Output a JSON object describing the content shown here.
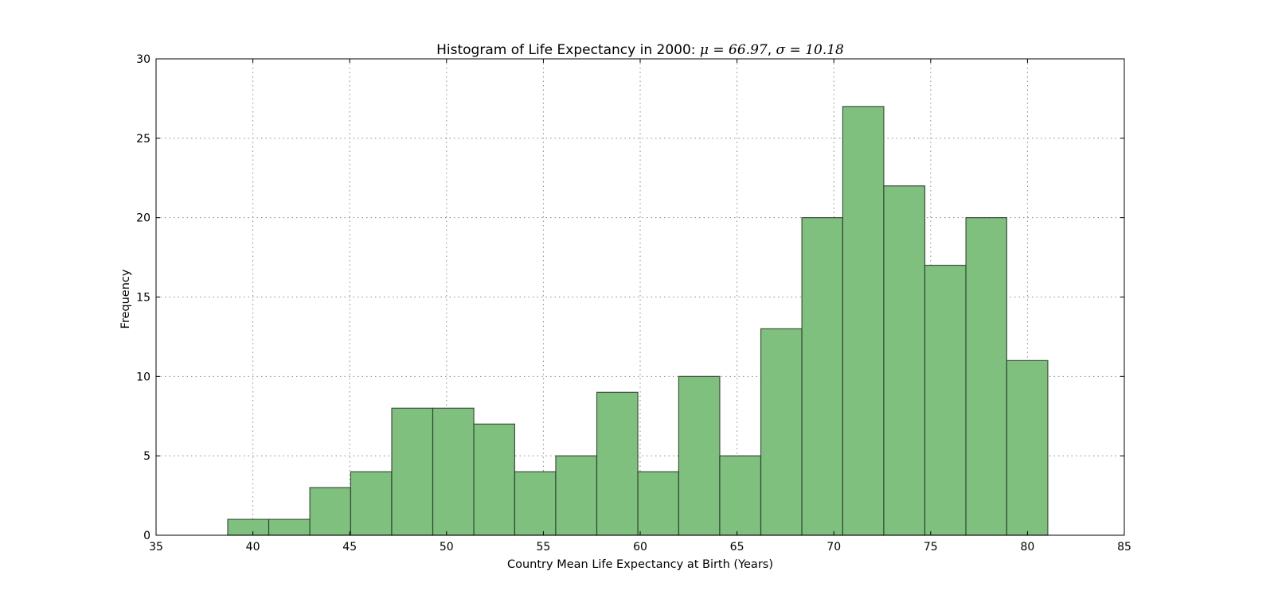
{
  "chart_data": {
    "type": "bar",
    "subtype": "histogram",
    "title": "Histogram of Life Expectancy in 2000: μ = 66.97, σ = 10.18",
    "title_parts": {
      "prefix": "Histogram of Life Expectancy in 2000: ",
      "mu_label": "μ",
      "mu_value": "66.97",
      "sigma_label": "σ",
      "sigma_value": "10.18"
    },
    "xlabel": "Country Mean Life Expectancy at Birth (Years)",
    "ylabel": "Frequency",
    "xlim": [
      35,
      85
    ],
    "ylim": [
      0,
      30
    ],
    "xticks": [
      35,
      40,
      45,
      50,
      55,
      60,
      65,
      70,
      75,
      80,
      85
    ],
    "yticks": [
      0,
      5,
      10,
      15,
      20,
      25,
      30
    ],
    "grid": true,
    "legend": null,
    "bar_color": "#7fc07f",
    "bin_start": 38.7,
    "bin_end": 81.05,
    "bin_count": 20,
    "bin_edges": [
      38.7,
      40.82,
      42.94,
      45.05,
      47.17,
      49.29,
      51.41,
      53.52,
      55.64,
      57.76,
      59.88,
      61.99,
      64.11,
      66.23,
      68.35,
      70.46,
      72.58,
      74.7,
      76.82,
      78.93,
      81.05
    ],
    "values": [
      1,
      1,
      3,
      4,
      8,
      8,
      7,
      4,
      5,
      9,
      4,
      10,
      5,
      13,
      20,
      27,
      22,
      17,
      20,
      11
    ]
  }
}
